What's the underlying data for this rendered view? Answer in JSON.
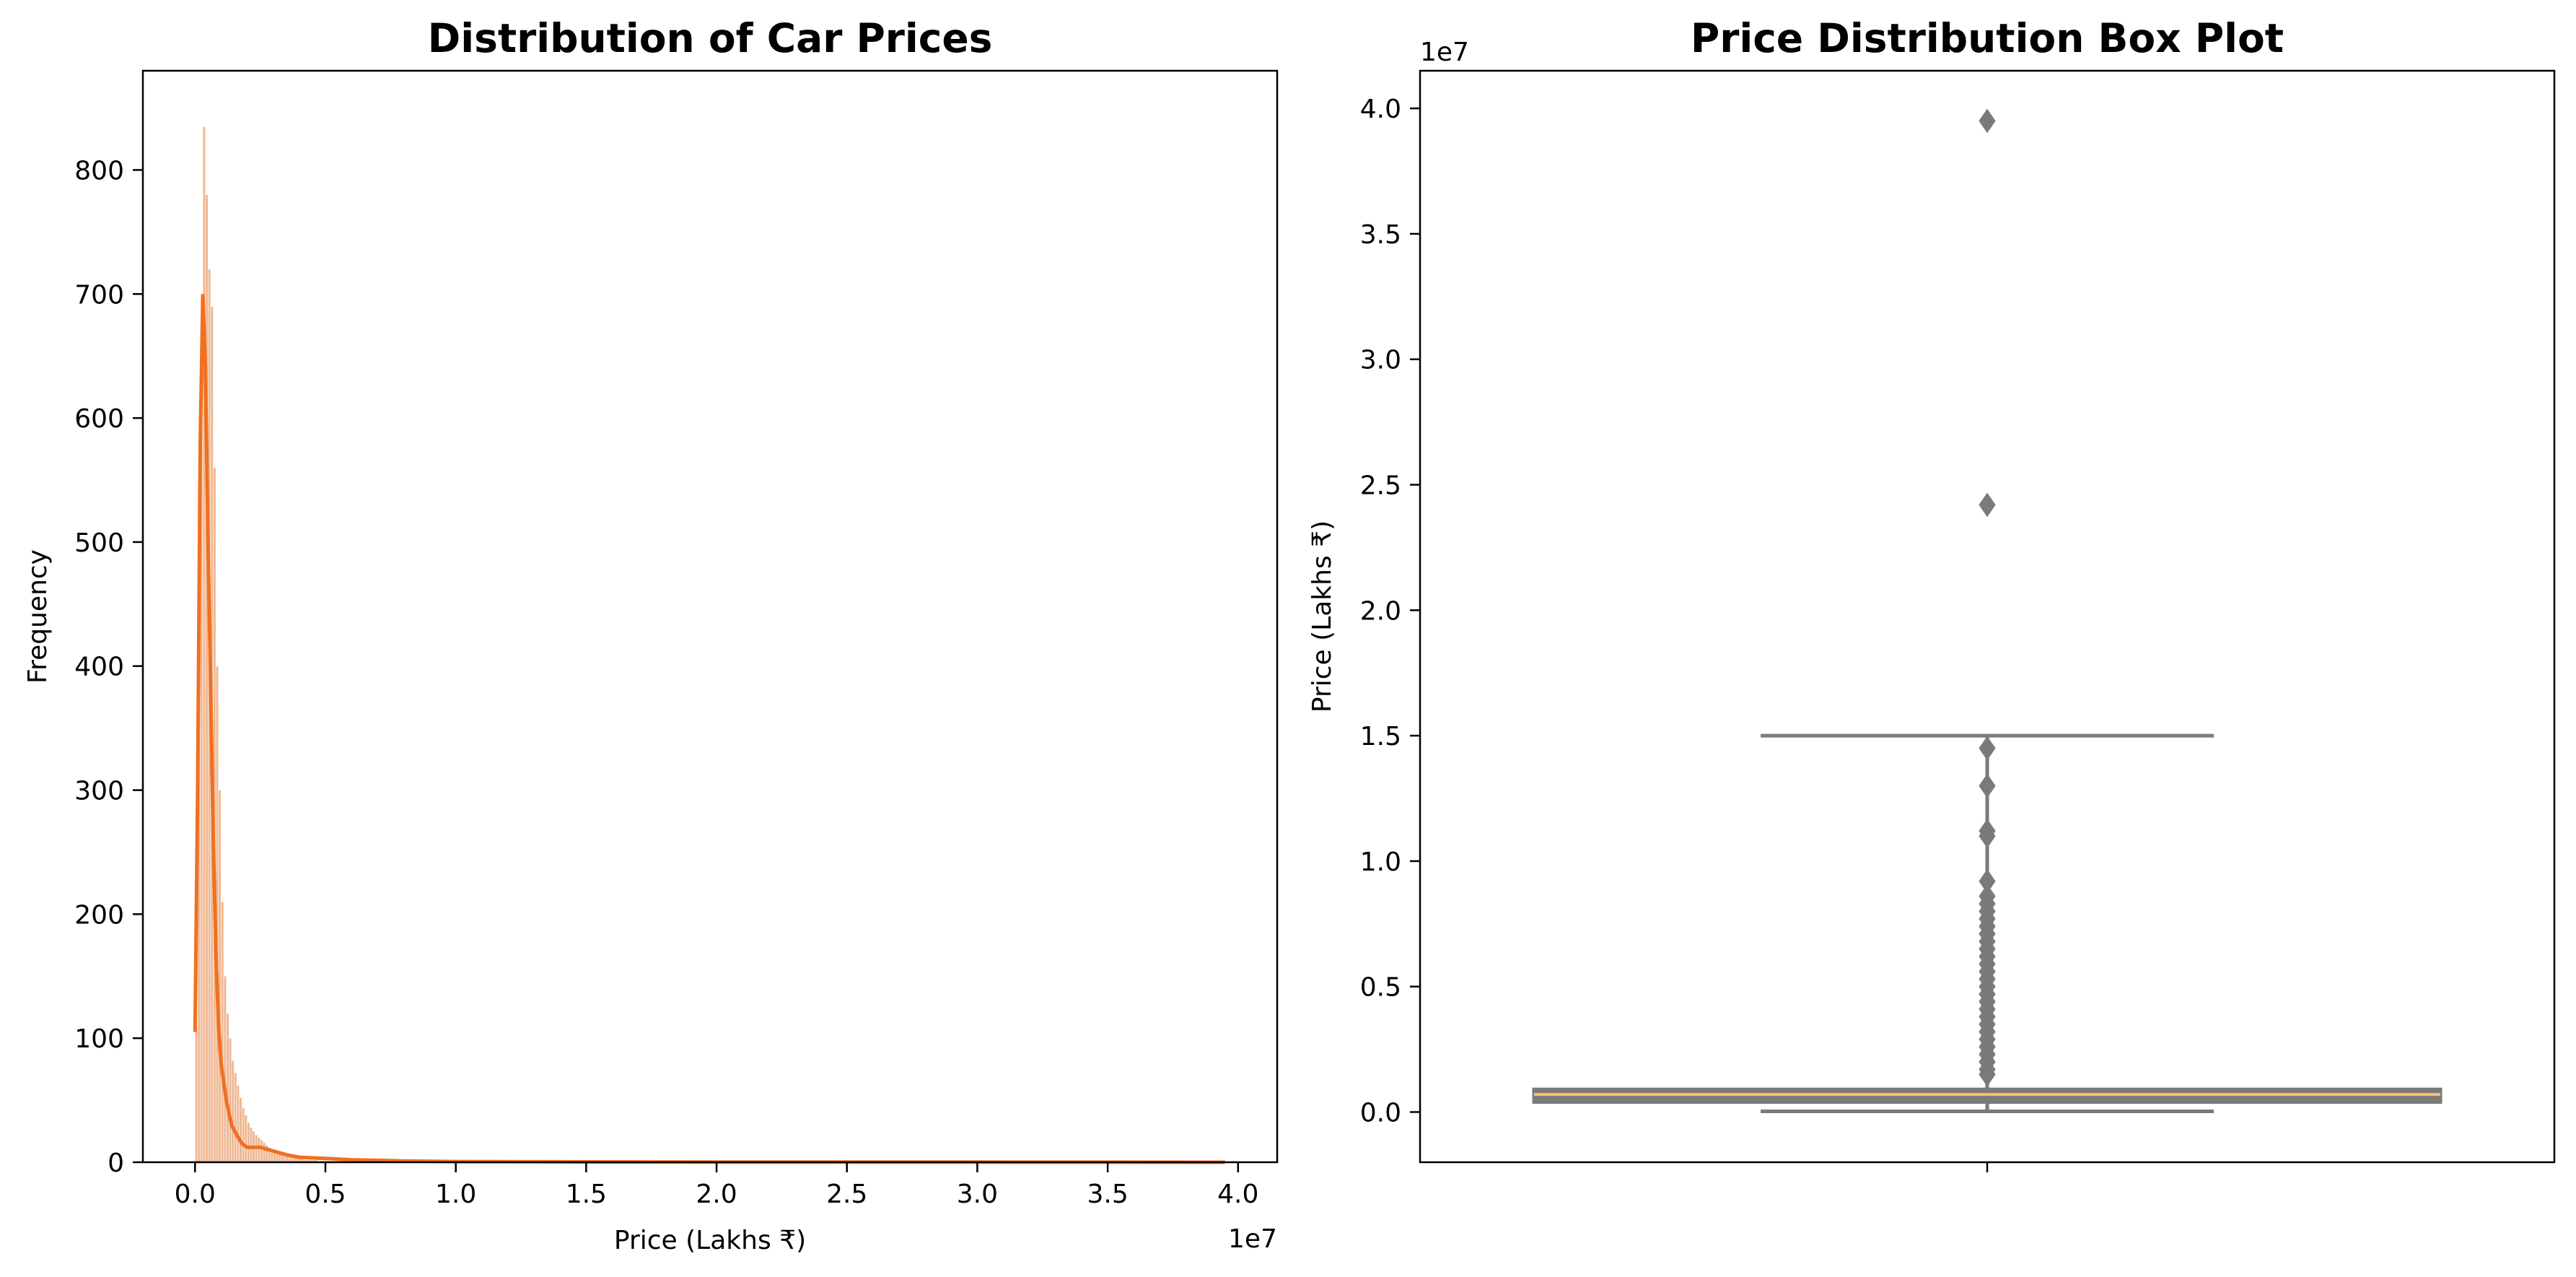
{
  "chart_data": [
    {
      "type": "histogram",
      "title": "Distribution of Car Prices",
      "xlabel": "Price (Lakhs ₹)",
      "ylabel": "Frequency",
      "x_offset_label": "1e7",
      "xlim": [
        -0.2,
        4.15
      ],
      "ylim": [
        0,
        880
      ],
      "x_ticks": [
        0.0,
        0.5,
        1.0,
        1.5,
        2.0,
        2.5,
        3.0,
        3.5,
        4.0
      ],
      "x_tick_labels": [
        "0.0",
        "0.5",
        "1.0",
        "1.5",
        "2.0",
        "2.5",
        "3.0",
        "3.5",
        "4.0"
      ],
      "y_ticks": [
        0,
        100,
        200,
        300,
        400,
        500,
        600,
        700,
        800
      ],
      "y_tick_labels": [
        "0",
        "100",
        "200",
        "300",
        "400",
        "500",
        "600",
        "700",
        "800"
      ],
      "bar_color": "#e9a070",
      "kde_color": "#f07020",
      "histogram": {
        "start": 0.0,
        "bin_width": 0.01,
        "counts": [
          110,
          480,
          610,
          835,
          780,
          720,
          690,
          560,
          400,
          300,
          210,
          150,
          120,
          100,
          82,
          72,
          62,
          52,
          44,
          38,
          32,
          28,
          25,
          22,
          20,
          18,
          16,
          14,
          12,
          11,
          10,
          9,
          8,
          7,
          6,
          5,
          5,
          4,
          4,
          3,
          3,
          3,
          2,
          2,
          2,
          2,
          2,
          1,
          1,
          1,
          1,
          1,
          1,
          1,
          1,
          1,
          1,
          1,
          1,
          1
        ]
      },
      "kde": {
        "x": [
          0.0,
          0.01,
          0.02,
          0.03,
          0.04,
          0.05,
          0.06,
          0.07,
          0.08,
          0.09,
          0.1,
          0.12,
          0.14,
          0.16,
          0.18,
          0.2,
          0.25,
          0.3,
          0.35,
          0.4,
          0.5,
          0.6,
          0.7,
          0.8,
          1.0,
          1.5,
          2.0,
          3.0,
          3.95
        ],
        "y": [
          105,
          300,
          580,
          700,
          640,
          500,
          380,
          260,
          170,
          110,
          80,
          50,
          30,
          22,
          15,
          12,
          12,
          9,
          6,
          4,
          3,
          2,
          1.5,
          1,
          0.5,
          0.3,
          0.2,
          0.1,
          0
        ]
      }
    },
    {
      "type": "box",
      "title": "Price Distribution Box Plot",
      "xlabel": "",
      "ylabel": "Price (Lakhs ₹)",
      "y_offset_label": "1e7",
      "ylim": [
        -0.2,
        4.15
      ],
      "y_ticks": [
        0.0,
        0.5,
        1.0,
        1.5,
        2.0,
        2.5,
        3.0,
        3.5,
        4.0
      ],
      "y_tick_labels": [
        "0.0",
        "0.5",
        "1.0",
        "1.5",
        "2.0",
        "2.5",
        "3.0",
        "3.5",
        "4.0"
      ],
      "box_color": "#7a7a7a",
      "median_color": "#f5c26b",
      "q1": 0.04,
      "median": 0.07,
      "q3": 0.09,
      "whisker_low": 0.003,
      "whisker_high": 1.5,
      "outliers": [
        0.15,
        0.17,
        0.2,
        0.23,
        0.26,
        0.29,
        0.32,
        0.35,
        0.38,
        0.41,
        0.44,
        0.47,
        0.5,
        0.53,
        0.56,
        0.59,
        0.62,
        0.65,
        0.68,
        0.71,
        0.74,
        0.77,
        0.8,
        0.83,
        0.86,
        0.92,
        1.1,
        1.12,
        1.3,
        1.45,
        2.42,
        3.95
      ]
    }
  ]
}
